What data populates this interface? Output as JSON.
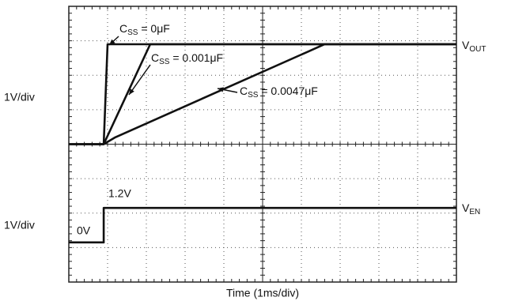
{
  "chart_data": {
    "type": "line",
    "xlabel": "Time (1ms/div)",
    "xlim": [
      0,
      10
    ],
    "ylim": [
      0,
      8
    ],
    "xticks": [
      0,
      1,
      2,
      3,
      4,
      5,
      6,
      7,
      8,
      9,
      10
    ],
    "yticks": [
      0,
      1,
      2,
      3,
      4,
      5,
      6,
      7,
      8
    ],
    "grid": true,
    "color": "#111111",
    "panel_labels": [
      "1V/div",
      "1V/div"
    ],
    "trace_labels": [
      "VOUT",
      "VEN"
    ],
    "level_labels": [
      "1.2V",
      "0V"
    ],
    "series": [
      {
        "name": "CSS = 0μF",
        "x": [
          0,
          0.9,
          1.0,
          10
        ],
        "values": [
          4,
          4,
          6.9,
          6.9
        ]
      },
      {
        "name": "CSS = 0.001μF",
        "x": [
          0,
          0.9,
          2.1,
          10
        ],
        "values": [
          4,
          4,
          6.9,
          6.9
        ]
      },
      {
        "name": "CSS = 0.0047μF",
        "x": [
          0,
          0.9,
          1.2,
          6.1,
          6.6,
          10
        ],
        "values": [
          4,
          4,
          4.2,
          6.65,
          6.9,
          6.9
        ]
      },
      {
        "name": "VEN",
        "x": [
          0,
          0.9,
          0.9,
          10
        ],
        "values": [
          1.15,
          1.15,
          2.15,
          2.15
        ]
      }
    ]
  }
}
